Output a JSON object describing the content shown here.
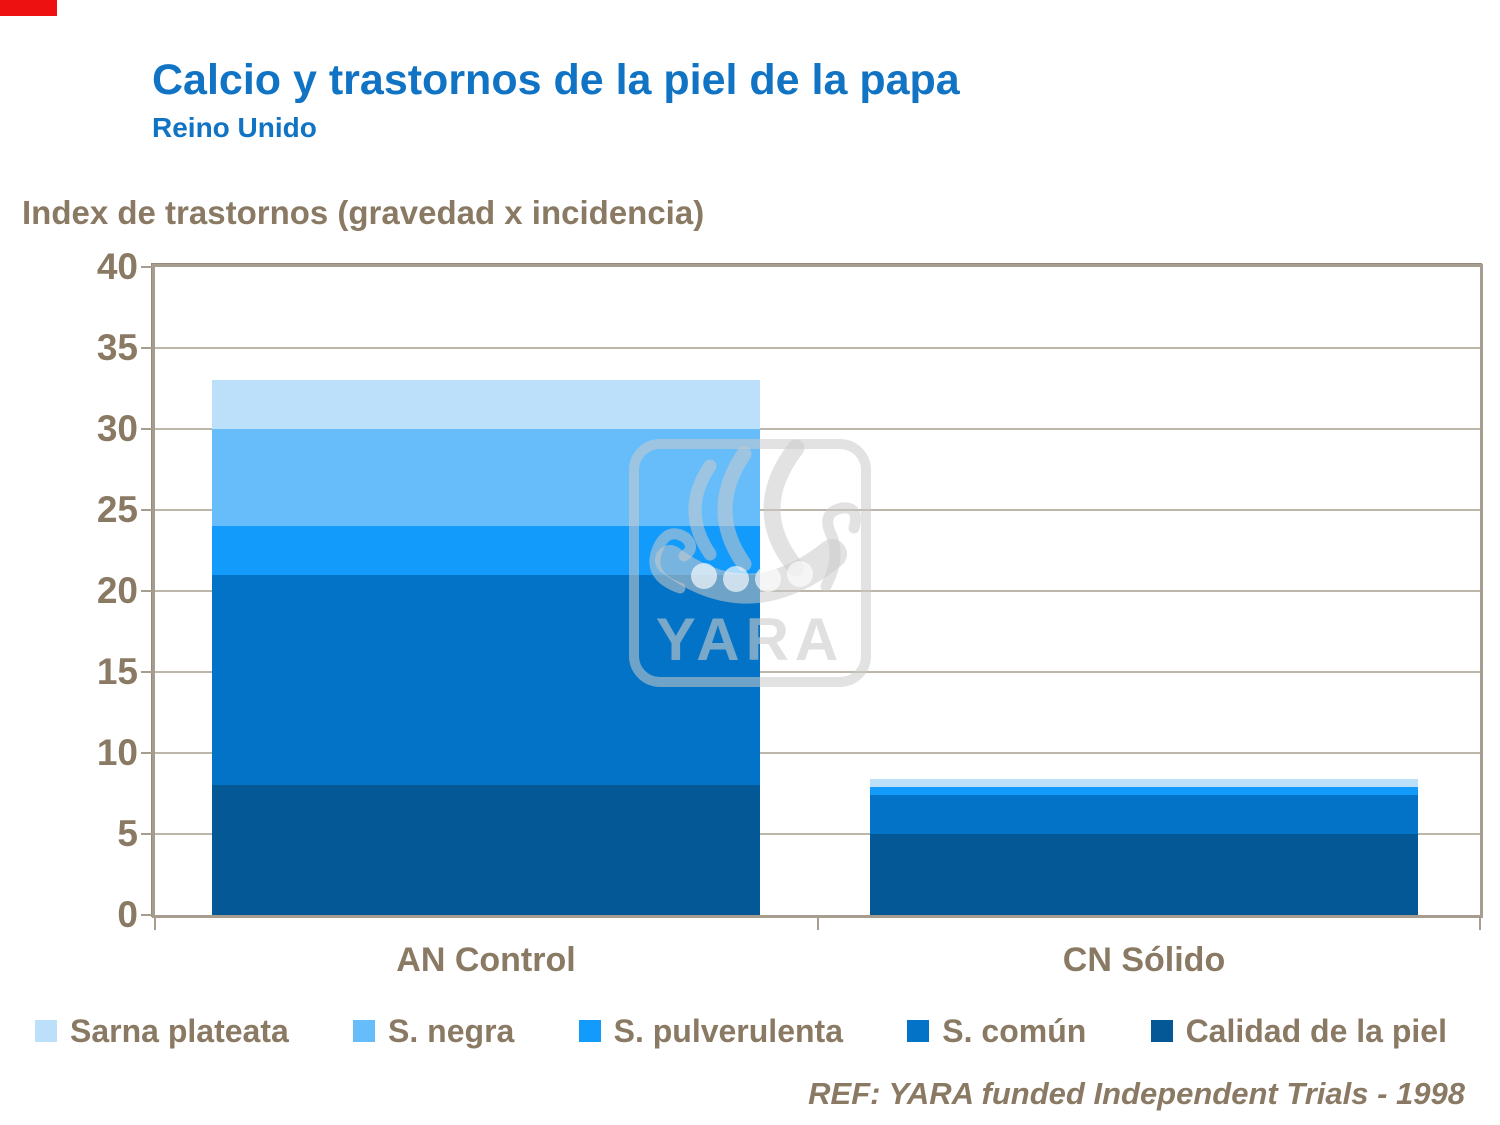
{
  "page": {
    "title": "Calcio y trastornos de la piel de la papa",
    "subtitle": "Reino Unido",
    "footer": "REF: YARA funded Independent Trials - 1998",
    "watermark_text": "YARA"
  },
  "chart_data": {
    "type": "bar",
    "stacked": true,
    "title": "Calcio y trastornos de la piel de la papa",
    "subtitle": "Reino Unido",
    "ylabel": "Index de trastornos (gravedad x incidencia)",
    "xlabel": "",
    "ylim": [
      0,
      40
    ],
    "ytick_step": 5,
    "grid": true,
    "legend_position": "bottom",
    "categories": [
      "AN Control",
      "CN Sólido"
    ],
    "series": [
      {
        "name": "Calidad de la piel",
        "color": "#045896",
        "values": [
          8,
          5
        ]
      },
      {
        "name": "S. común",
        "color": "#0273c6",
        "values": [
          13,
          2.4
        ]
      },
      {
        "name": "S. pulverulenta",
        "color": "#139bfb",
        "values": [
          3,
          0.5
        ]
      },
      {
        "name": "S. negra",
        "color": "#67bdfa",
        "values": [
          6,
          0
        ]
      },
      {
        "name": "Sarna plateata",
        "color": "#bcdffa",
        "values": [
          3,
          0.5
        ]
      }
    ],
    "totals": [
      33,
      8.4
    ]
  },
  "legend": {
    "items": [
      {
        "label": "Sarna plateata",
        "color": "#bcdffa"
      },
      {
        "label": "S. negra",
        "color": "#67bdfa"
      },
      {
        "label": "S. pulverulenta",
        "color": "#139bfb"
      },
      {
        "label": "S. común",
        "color": "#0273c6"
      },
      {
        "label": "Calidad de la piel",
        "color": "#045896"
      }
    ]
  },
  "colors": {
    "title_blue": "#1173c4",
    "text_brown": "#8a7a64",
    "line_tan": "#a79d8f",
    "corner_red": "#ee1111"
  }
}
